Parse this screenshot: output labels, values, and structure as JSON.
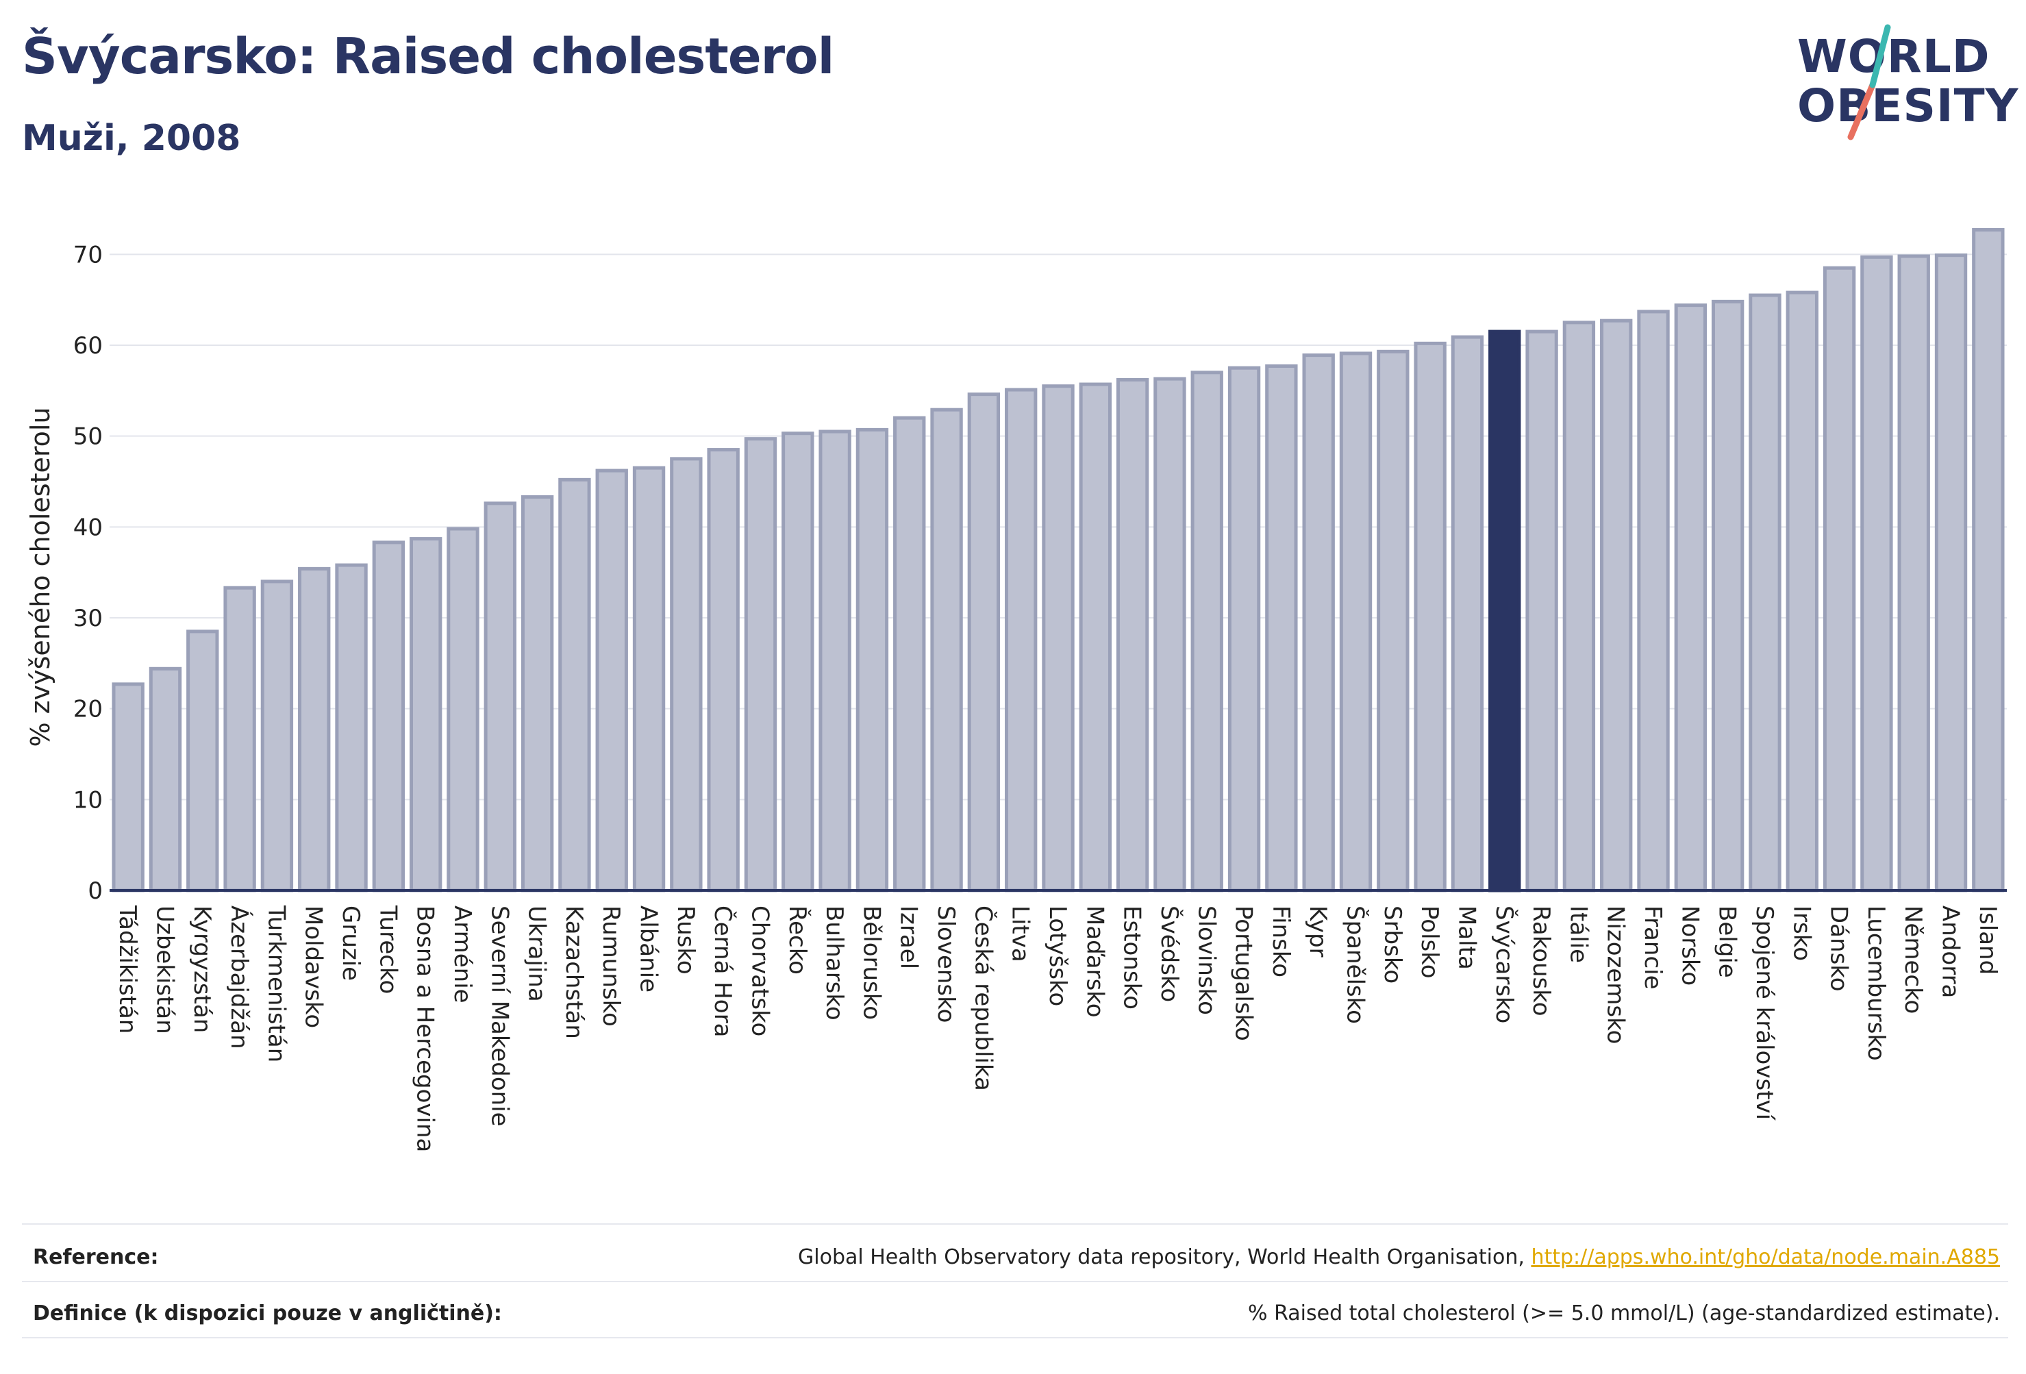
{
  "title": "Švýcarsko: Raised cholesterol",
  "subtitle": "Muži, 2008",
  "logo": {
    "line1": "WORLD",
    "line2": "OBESITY"
  },
  "colors": {
    "bar": "#bdc1d1",
    "bar_edge": "#9aa0b8",
    "highlight": "#2a3563",
    "grid": "#e3e5ec",
    "axis": "#2a3563"
  },
  "footer": {
    "reference_label": "Reference:",
    "reference_text": "Global Health Observatory data repository, World Health Organisation, ",
    "reference_link": "http://apps.who.int/gho/data/node.main.A885",
    "definition_label": "Definice (k dispozici pouze v angličtině):",
    "definition_text": "% Raised total cholesterol (>= 5.0 mmol/L) (age-standardized estimate)."
  },
  "chart_data": {
    "type": "bar",
    "ylabel": "% zvýšeného cholesterolu",
    "xlabel": "",
    "ylim": [
      0,
      75
    ],
    "yticks": [
      0,
      10,
      20,
      30,
      40,
      50,
      60,
      70
    ],
    "grid": true,
    "highlight": "Švýcarsko",
    "categories": [
      "Tádžikistán",
      "Uzbekistán",
      "Kyrgyzstán",
      "Ázerbajdžán",
      "Turkmenistán",
      "Moldavsko",
      "Gruzie",
      "Turecko",
      "Bosna a Hercegovina",
      "Arménie",
      "Severní Makedonie",
      "Ukrajina",
      "Kazachstán",
      "Rumunsko",
      "Albánie",
      "Rusko",
      "Černá Hora",
      "Chorvatsko",
      "Řecko",
      "Bulharsko",
      "Bělorusko",
      "Izrael",
      "Slovensko",
      "Česká republika",
      "Litva",
      "Lotyšsko",
      "Maďarsko",
      "Estonsko",
      "Švédsko",
      "Slovinsko",
      "Portugalsko",
      "Finsko",
      "Kypr",
      "Španělsko",
      "Srbsko",
      "Polsko",
      "Malta",
      "Švýcarsko",
      "Rakousko",
      "Itálie",
      "Nizozemsko",
      "Francie",
      "Norsko",
      "Belgie",
      "Spojené království",
      "Irsko",
      "Dánsko",
      "Lucembursko",
      "Německo",
      "Andorra",
      "Island"
    ],
    "values": [
      22.7,
      24.4,
      28.5,
      33.3,
      34.0,
      35.4,
      35.8,
      38.3,
      38.7,
      39.8,
      42.6,
      43.3,
      45.2,
      46.2,
      46.5,
      47.5,
      48.5,
      49.7,
      50.3,
      50.5,
      50.7,
      52.0,
      52.9,
      54.6,
      55.1,
      55.5,
      55.7,
      56.2,
      56.3,
      57.0,
      57.5,
      57.7,
      58.9,
      59.1,
      59.3,
      60.2,
      60.9,
      61.5,
      61.5,
      62.5,
      62.7,
      63.7,
      64.4,
      64.8,
      65.5,
      65.8,
      68.5,
      69.7,
      69.8,
      69.9,
      72.7
    ]
  }
}
